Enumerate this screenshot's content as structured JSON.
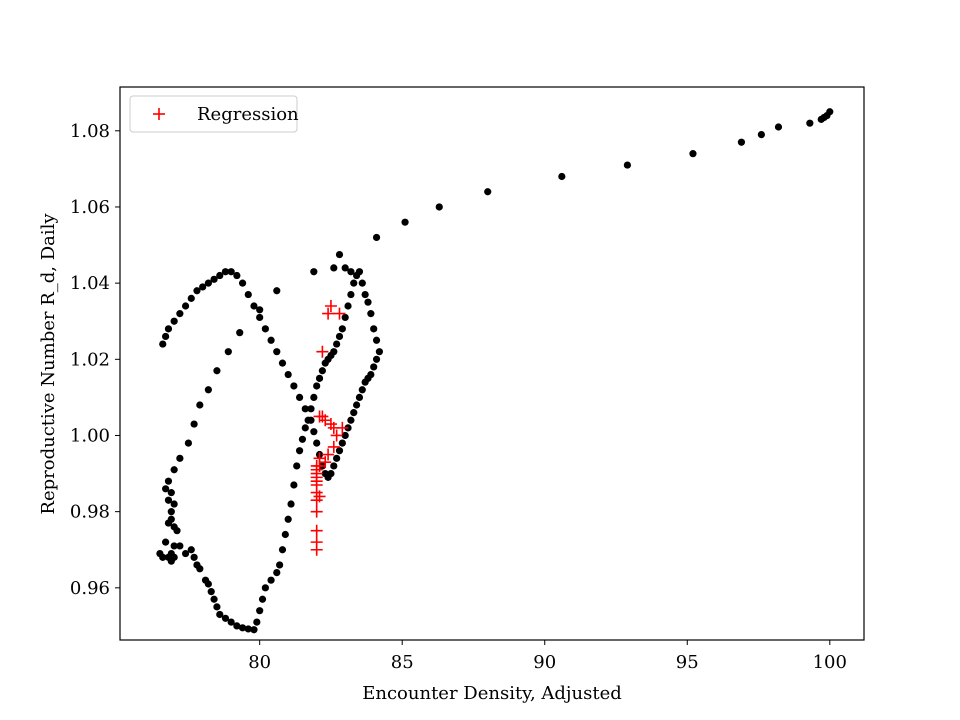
{
  "chart_data": {
    "type": "scatter",
    "xlabel": "Encounter Density, Adjusted",
    "ylabel": "Reproductive Number R_d, Daily",
    "xlim": [
      75.1,
      101.2
    ],
    "ylim": [
      0.9463,
      1.0915
    ],
    "xticks": [
      80,
      85,
      90,
      95,
      100
    ],
    "yticks": [
      0.96,
      0.98,
      1.0,
      1.02,
      1.04,
      1.06,
      1.08
    ],
    "grid": false,
    "legend_position": "top-left",
    "series": [
      {
        "marker": "dot",
        "color": "#000000",
        "x": [
          76.5,
          76.6,
          76.7,
          76.8,
          76.9,
          77.0,
          76.9,
          76.8,
          76.7,
          76.8,
          76.9,
          77.0,
          77.1,
          77.0,
          76.9,
          76.8,
          76.9,
          77.0,
          77.2,
          77.4,
          77.6,
          77.7,
          77.8,
          77.9,
          78.1,
          78.2,
          78.3,
          78.4,
          78.5,
          78.6,
          78.8,
          79.0,
          79.2,
          79.4,
          79.6,
          79.8,
          79.9,
          80.0,
          80.1,
          80.2,
          80.4,
          80.6,
          80.7,
          80.8,
          80.9,
          81.0,
          81.1,
          81.2,
          81.3,
          81.4,
          81.5,
          81.6,
          81.7,
          81.8,
          81.9,
          82.0,
          82.1,
          82.2,
          82.3,
          82.4,
          82.5,
          82.6,
          82.7,
          82.8,
          82.9,
          83.0,
          83.1,
          83.2,
          83.3,
          83.4,
          83.5,
          83.6,
          83.7,
          83.8,
          83.9,
          84.0,
          84.1,
          84.2,
          84.1,
          84.0,
          83.9,
          83.8,
          83.7,
          83.6,
          83.5,
          83.4,
          83.3,
          83.2,
          83.1,
          83.0,
          82.9,
          82.8,
          82.7,
          82.6,
          82.5,
          82.4,
          82.3,
          82.2,
          82.1,
          82.0,
          81.9,
          81.8,
          81.6,
          81.4,
          81.2,
          81.0,
          80.8,
          80.6,
          80.4,
          80.2,
          80.0,
          79.8,
          79.6,
          79.4,
          79.2,
          79.0,
          78.8,
          78.6,
          78.4,
          78.2,
          78.0,
          77.8,
          77.6,
          77.4,
          77.2,
          77.0,
          76.8,
          76.7,
          76.6,
          77.0,
          77.2,
          77.5,
          77.7,
          77.9,
          78.2,
          78.5,
          78.9,
          79.3,
          80.0,
          80.6,
          81.9,
          82.6,
          82.8,
          83.0,
          83.2,
          84.1,
          85.1,
          86.3,
          88.0,
          90.6,
          92.9,
          95.2,
          96.9,
          97.6,
          98.2,
          99.3,
          99.7,
          99.8,
          99.9,
          100.0
        ],
        "y": [
          0.969,
          0.968,
          0.972,
          0.977,
          0.978,
          0.976,
          0.98,
          0.983,
          0.986,
          0.988,
          0.985,
          0.982,
          0.975,
          0.971,
          0.969,
          0.968,
          0.967,
          0.968,
          0.971,
          0.969,
          0.97,
          0.968,
          0.966,
          0.965,
          0.962,
          0.961,
          0.959,
          0.957,
          0.955,
          0.953,
          0.952,
          0.951,
          0.95,
          0.9495,
          0.9492,
          0.949,
          0.951,
          0.954,
          0.957,
          0.96,
          0.962,
          0.964,
          0.966,
          0.97,
          0.974,
          0.978,
          0.982,
          0.987,
          0.992,
          0.996,
          0.999,
          1.002,
          1.004,
          1.007,
          1.01,
          1.013,
          1.015,
          1.017,
          1.019,
          1.02,
          1.021,
          1.022,
          1.024,
          1.026,
          1.028,
          1.031,
          1.034,
          1.037,
          1.04,
          1.042,
          1.043,
          1.04,
          1.037,
          1.035,
          1.032,
          1.028,
          1.025,
          1.022,
          1.02,
          1.018,
          1.016,
          1.015,
          1.014,
          1.012,
          1.01,
          1.008,
          1.006,
          1.004,
          1.002,
          1.0,
          0.998,
          0.996,
          0.994,
          0.992,
          0.99,
          0.989,
          0.99,
          0.992,
          0.995,
          0.998,
          1.001,
          1.004,
          1.007,
          1.01,
          1.013,
          1.016,
          1.019,
          1.022,
          1.025,
          1.028,
          1.031,
          1.034,
          1.037,
          1.04,
          1.042,
          1.043,
          1.043,
          1.042,
          1.041,
          1.04,
          1.039,
          1.038,
          1.036,
          1.034,
          1.032,
          1.03,
          1.028,
          1.026,
          1.024,
          0.991,
          0.994,
          0.998,
          1.003,
          1.008,
          1.012,
          1.017,
          1.022,
          1.027,
          1.033,
          1.038,
          1.043,
          1.044,
          1.0475,
          1.044,
          1.043,
          1.052,
          1.056,
          1.06,
          1.064,
          1.068,
          1.071,
          1.074,
          1.077,
          1.079,
          1.081,
          1.082,
          1.083,
          1.0835,
          1.084,
          1.085
        ]
      },
      {
        "name": "Regression",
        "marker": "plus",
        "color": "#ff0000",
        "x": [
          82.0,
          82.0,
          82.0,
          82.0,
          82.0,
          82.0,
          82.0,
          82.0,
          82.0,
          82.0,
          82.0,
          82.0,
          82.1,
          82.1,
          82.1,
          82.1,
          82.2,
          82.2,
          82.3,
          82.3,
          82.4,
          82.4,
          82.5,
          82.5,
          82.6,
          82.6,
          82.7,
          82.8,
          82.9
        ],
        "y": [
          0.97,
          0.972,
          0.975,
          0.98,
          0.983,
          0.985,
          0.987,
          0.988,
          0.989,
          0.99,
          0.991,
          0.992,
          0.994,
          0.992,
          0.984,
          1.005,
          1.022,
          1.005,
          1.004,
          0.993,
          1.032,
          0.995,
          1.003,
          1.034,
          0.997,
          1.002,
          1.0,
          1.032,
          1.002
        ]
      }
    ]
  }
}
